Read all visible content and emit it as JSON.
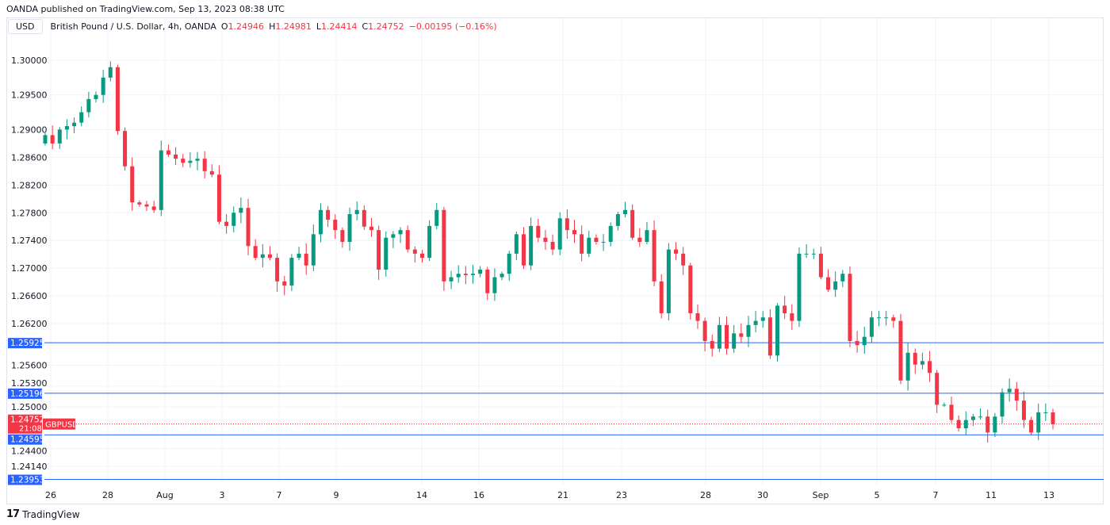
{
  "header": {
    "published": "OANDA published on TradingView.com, Sep 13, 2023 08:38 UTC"
  },
  "legend": {
    "currency": "USD",
    "symbol": "British Pound / U.S. Dollar, 4h, OANDA",
    "o_label": "O",
    "o": "1.24946",
    "h_label": "H",
    "h": "1.24981",
    "l_label": "L",
    "l": "1.24414",
    "c_label": "C",
    "c": "1.24752",
    "change": "−0.00195 (−0.16%)"
  },
  "footer": {
    "brand": "TradingView"
  },
  "colors": {
    "up": "#089981",
    "down": "#f23645",
    "hline": "#2962ff",
    "grid": "#f0f3fa"
  },
  "chart_data": {
    "type": "candlestick",
    "symbol": "GBPUSD",
    "interval": "4h",
    "y_ticks": [
      "1.30000",
      "1.29500",
      "1.29000",
      "1.28600",
      "1.28200",
      "1.27800",
      "1.27400",
      "1.27000",
      "1.26600",
      "1.26200",
      "1.25600",
      "1.25300",
      "1.25000",
      "1.24400",
      "1.24140"
    ],
    "x_ticks": [
      "26",
      "28",
      "Aug",
      "3",
      "7",
      "9",
      "14",
      "16",
      "21",
      "23",
      "28",
      "30",
      "Sep",
      "5",
      "7",
      "11",
      "13"
    ],
    "horizontal_lines": [
      "1.25925",
      "1.25196",
      "1.24595",
      "1.23953"
    ],
    "last_price": {
      "value": "1.24752",
      "countdown": "21:08",
      "label": "GBPUSD"
    },
    "start_open": 1.288,
    "closes": [
      1.2892,
      1.288,
      1.29,
      1.2905,
      1.291,
      1.2925,
      1.2944,
      1.295,
      1.2975,
      1.299,
      1.2898,
      1.2847,
      1.2795,
      1.2792,
      1.2789,
      1.2784,
      1.287,
      1.2864,
      1.2858,
      1.2852,
      1.2855,
      1.2858,
      1.284,
      1.2835,
      1.2767,
      1.2761,
      1.278,
      1.2787,
      1.2732,
      1.2715,
      1.272,
      1.2715,
      1.2681,
      1.2675,
      1.2715,
      1.2721,
      1.2704,
      1.2749,
      1.2784,
      1.277,
      1.2755,
      1.2738,
      1.2778,
      1.2784,
      1.276,
      1.2755,
      1.2698,
      1.2744,
      1.2749,
      1.2755,
      1.2727,
      1.2721,
      1.2715,
      1.2761,
      1.2784,
      1.2681,
      1.2687,
      1.2692,
      1.269,
      1.2692,
      1.2698,
      1.2664,
      1.2687,
      1.2692,
      1.2721,
      1.2749,
      1.2704,
      1.2761,
      1.2744,
      1.2738,
      1.2727,
      1.2772,
      1.2755,
      1.2749,
      1.2721,
      1.2744,
      1.2738,
      1.2738,
      1.2761,
      1.2778,
      1.2784,
      1.2744,
      1.2738,
      1.2755,
      1.2681,
      1.2635,
      1.2727,
      1.2721,
      1.2704,
      1.2635,
      1.2624,
      1.2595,
      1.2584,
      1.2618,
      1.2584,
      1.2606,
      1.2601,
      1.2618,
      1.2624,
      1.2629,
      1.2574,
      1.2646,
      1.2635,
      1.2624,
      1.2721,
      1.2721,
      1.2721,
      1.2687,
      1.2669,
      1.2681,
      1.2692,
      1.2595,
      1.2589,
      1.2601,
      1.2629,
      1.2629,
      1.2629,
      1.2624,
      1.2538,
      1.2578,
      1.2561,
      1.2566,
      1.2549,
      1.2503,
      1.2503,
      1.2481,
      1.2469,
      1.2481,
      1.2486,
      1.2486,
      1.2463,
      1.2486,
      1.2521,
      1.2526,
      1.2509,
      1.2481,
      1.2463,
      1.2492,
      1.2492,
      1.2475
    ]
  }
}
